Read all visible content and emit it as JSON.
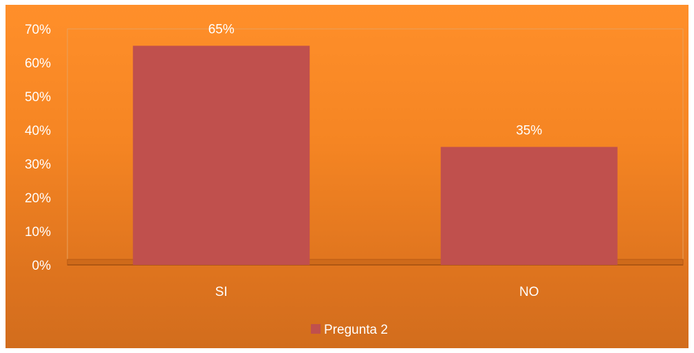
{
  "chart_data": {
    "type": "bar",
    "categories": [
      "SI",
      "NO"
    ],
    "series": [
      {
        "name": "Pregunta 2",
        "values": [
          65,
          35
        ],
        "color": "#c0504d"
      }
    ],
    "data_labels": [
      "65%",
      "35%"
    ],
    "ylim": [
      0,
      70
    ],
    "yticks": [
      0,
      10,
      20,
      30,
      40,
      50,
      60,
      70
    ],
    "ytick_labels": [
      "0%",
      "10%",
      "20%",
      "30%",
      "40%",
      "50%",
      "60%",
      "70%"
    ],
    "title": "",
    "xlabel": "",
    "ylabel": "",
    "grid": false,
    "legend_position": "bottom",
    "background_color": "#f58523"
  }
}
